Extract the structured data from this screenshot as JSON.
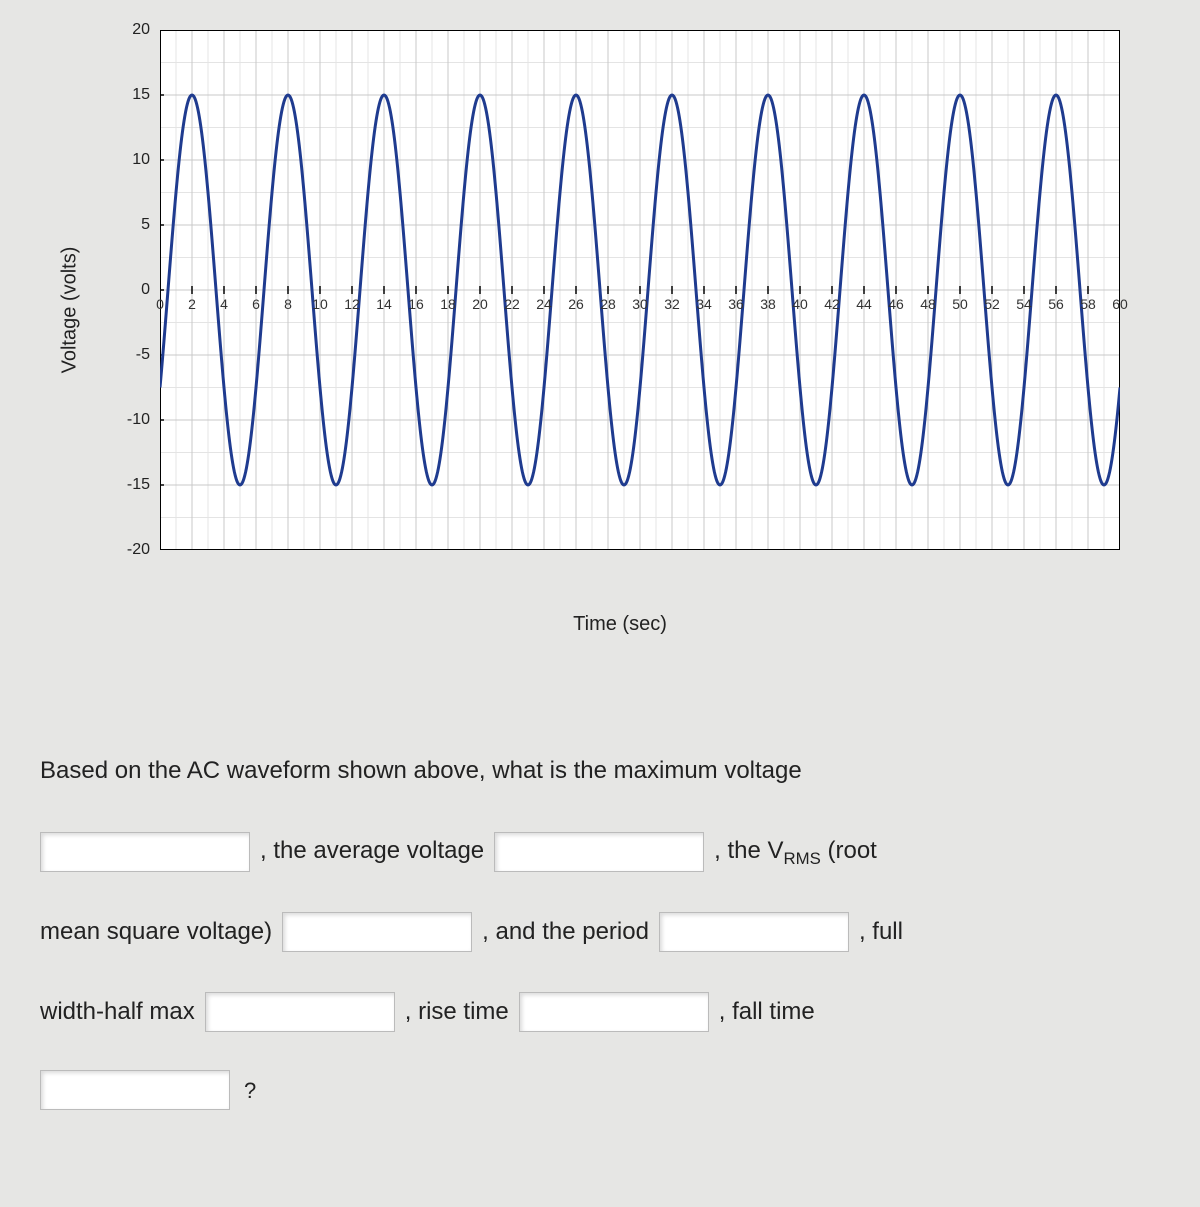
{
  "chart": {
    "type": "line",
    "xlabel": "Time (sec)",
    "ylabel": "Voltage (volts)",
    "xlim": [
      0,
      60
    ],
    "ylim": [
      -20,
      20
    ],
    "xtick_step": 2,
    "ytick_step": 5,
    "xtick_labels": [
      "0",
      "2",
      "4",
      "6",
      "8",
      "10",
      "12",
      "14",
      "16",
      "18",
      "20",
      "22",
      "24",
      "26",
      "28",
      "30",
      "32",
      "34",
      "36",
      "38",
      "40",
      "42",
      "44",
      "46",
      "48",
      "50",
      "52",
      "54",
      "56",
      "58",
      "60"
    ],
    "ytick_labels": [
      "-20",
      "-15",
      "-10",
      "-5",
      "0",
      "5",
      "10",
      "15",
      "20"
    ],
    "background_color": "#ffffff",
    "grid_color_major": "#c8c8c8",
    "grid_color_minor": "#e4e4e4",
    "axis_color": "#000000",
    "label_fontsize": 20,
    "tick_fontsize": 16,
    "series": {
      "name": "AC waveform",
      "color": "#1f3b8f",
      "amplitude": 15,
      "period": 6,
      "line_width": 3,
      "phase_offset_sec": 0.5,
      "waveform": "sine-like (rounded peaks, nearly triangular)"
    }
  },
  "question": {
    "prompt_lead": "Based on the AC waveform shown above, what is the maximum voltage",
    "segments": {
      "avg": ", the average voltage",
      "vrms_pre": ", the V",
      "vrms_sub": "RMS",
      "vrms_post": " (root",
      "mean_sq": "mean square voltage)",
      "period": ", and the period",
      "full": ", full",
      "fwhm": "width-half max",
      "rise": ", rise time",
      "fall": ", fall time",
      "qmark": "?"
    }
  }
}
